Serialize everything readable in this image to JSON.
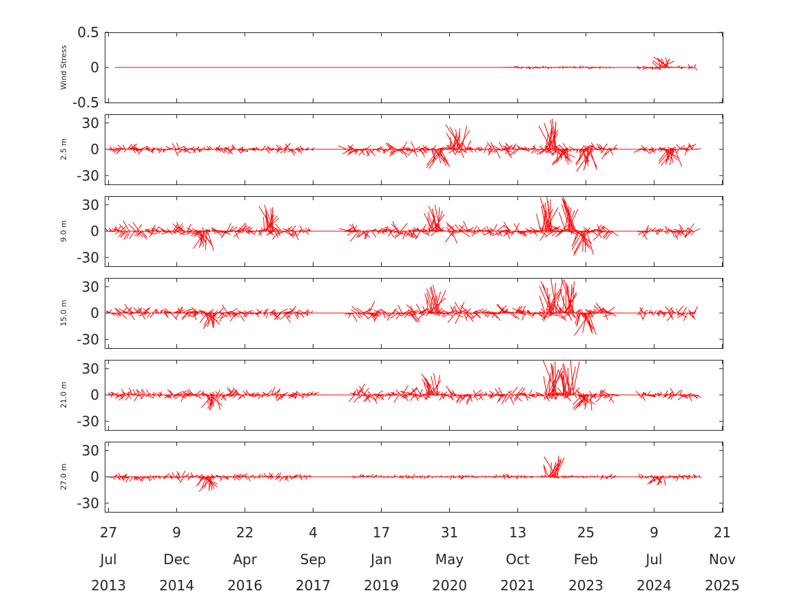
{
  "chart_data": {
    "type": "line",
    "subtype": "stick-vector-timeseries",
    "color": "#ff0000",
    "x_ticks": [
      {
        "day": "27",
        "month": "Jul",
        "year": "2013",
        "date": "2013-07-27"
      },
      {
        "day": "9",
        "month": "Dec",
        "year": "2014",
        "date": "2014-12-09"
      },
      {
        "day": "22",
        "month": "Apr",
        "year": "2016",
        "date": "2016-04-22"
      },
      {
        "day": "4",
        "month": "Sep",
        "year": "2017",
        "date": "2017-09-04"
      },
      {
        "day": "17",
        "month": "Jan",
        "year": "2019",
        "date": "2019-01-17"
      },
      {
        "day": "31",
        "month": "May",
        "year": "2020",
        "date": "2020-05-31"
      },
      {
        "day": "13",
        "month": "Oct",
        "year": "2021",
        "date": "2021-10-13"
      },
      {
        "day": "25",
        "month": "Feb",
        "year": "2023",
        "date": "2023-02-25"
      },
      {
        "day": "9",
        "month": "Jul",
        "year": "2024",
        "date": "2024-07-09"
      },
      {
        "day": "21",
        "month": "Nov",
        "year": "2025",
        "date": "2025-11-21"
      }
    ],
    "xlim": [
      "2013-06-29",
      "2025-11-29"
    ],
    "panels": [
      {
        "ylabel": "Wind Stress",
        "ylim": [
          -0.5,
          0.5
        ],
        "yticks": [
          0.5,
          0,
          -0.5
        ],
        "ytick_labels": [
          "0.5",
          "0",
          "-0.5"
        ],
        "zero_line": [
          "2013-09-12",
          "2025-05-08"
        ],
        "segments": [
          {
            "start": "2021-07-08",
            "end": "2023-09-20",
            "amp": 0.05
          },
          {
            "start": "2024-03-20",
            "end": "2025-05-08",
            "amp": 0.07
          }
        ],
        "peaks": [
          {
            "date": "2024-09-20",
            "value": 0.15
          }
        ]
      },
      {
        "ylabel": "2.5 m",
        "ylim": [
          -40,
          40
        ],
        "yticks": [
          30,
          0,
          -30
        ],
        "ytick_labels": [
          "30",
          "0",
          "-30"
        ],
        "zero_line": [
          "2013-07-20",
          "2025-05-08"
        ],
        "segments": [
          {
            "start": "2013-07-20",
            "end": "2017-08-25",
            "amp": 12
          },
          {
            "start": "2018-05-08",
            "end": "2023-09-18",
            "amp": 15
          },
          {
            "start": "2024-03-20",
            "end": "2025-05-08",
            "amp": 13
          }
        ],
        "peaks": [
          {
            "date": "2020-03-05",
            "value": -22
          },
          {
            "date": "2020-07-27",
            "value": 28
          },
          {
            "date": "2022-06-15",
            "value": 35
          },
          {
            "date": "2022-09-10",
            "value": -18
          },
          {
            "date": "2023-03-05",
            "value": -25
          },
          {
            "date": "2024-11-02",
            "value": -20
          }
        ]
      },
      {
        "ylabel": "9.0 m",
        "ylim": [
          -40,
          40
        ],
        "yticks": [
          30,
          0,
          -30
        ],
        "ytick_labels": [
          "30",
          "0",
          "-30"
        ],
        "zero_line": [
          "2013-07-20",
          "2025-05-08"
        ],
        "segments": [
          {
            "start": "2013-07-25",
            "end": "2017-08-25",
            "amp": 16
          },
          {
            "start": "2018-05-08",
            "end": "2023-09-18",
            "amp": 18
          },
          {
            "start": "2024-03-20",
            "end": "2025-05-08",
            "amp": 14
          }
        ],
        "peaks": [
          {
            "date": "2015-06-15",
            "value": -22
          },
          {
            "date": "2016-10-20",
            "value": 30
          },
          {
            "date": "2020-02-15",
            "value": 30
          },
          {
            "date": "2022-05-15",
            "value": 40
          },
          {
            "date": "2022-11-05",
            "value": 40
          },
          {
            "date": "2023-02-01",
            "value": -28
          }
        ]
      },
      {
        "ylabel": "15.0 m",
        "ylim": [
          -40,
          40
        ],
        "yticks": [
          30,
          0,
          -30
        ],
        "ytick_labels": [
          "30",
          "0",
          "-30"
        ],
        "zero_line": [
          "2013-07-20",
          "2025-05-08"
        ],
        "segments": [
          {
            "start": "2013-07-25",
            "end": "2017-08-25",
            "amp": 15
          },
          {
            "start": "2018-06-10",
            "end": "2023-09-18",
            "amp": 18
          },
          {
            "start": "2024-03-20",
            "end": "2025-05-08",
            "amp": 14
          }
        ],
        "peaks": [
          {
            "date": "2015-08-10",
            "value": -18
          },
          {
            "date": "2020-02-10",
            "value": 32
          },
          {
            "date": "2022-06-15",
            "value": 40
          },
          {
            "date": "2022-10-25",
            "value": 40
          },
          {
            "date": "2023-02-15",
            "value": -26
          }
        ]
      },
      {
        "ylabel": "21.0 m",
        "ylim": [
          -40,
          40
        ],
        "yticks": [
          30,
          0,
          -30
        ],
        "ytick_labels": [
          "30",
          "0",
          "-30"
        ],
        "zero_line": [
          "2013-07-20",
          "2025-05-08"
        ],
        "segments": [
          {
            "start": "2013-07-25",
            "end": "2017-09-20",
            "amp": 13
          },
          {
            "start": "2018-06-20",
            "end": "2023-09-18",
            "amp": 16
          },
          {
            "start": "2024-03-20",
            "end": "2025-05-08",
            "amp": 12
          }
        ],
        "peaks": [
          {
            "date": "2015-08-25",
            "value": -18
          },
          {
            "date": "2020-02-01",
            "value": 25
          },
          {
            "date": "2022-06-20",
            "value": 40
          },
          {
            "date": "2022-10-20",
            "value": 40
          },
          {
            "date": "2023-02-20",
            "value": -18
          }
        ]
      },
      {
        "ylabel": "27.0 m",
        "ylim": [
          -40,
          40
        ],
        "yticks": [
          30,
          0,
          -30
        ],
        "ytick_labels": [
          "30",
          "0",
          "-30"
        ],
        "zero_line": [
          "2013-07-20",
          "2025-06-10"
        ],
        "segments": [
          {
            "start": "2013-07-25",
            "end": "2017-08-25",
            "amp": 9
          },
          {
            "start": "2018-06-20",
            "end": "2023-09-18",
            "amp": 5
          },
          {
            "start": "2024-03-20",
            "end": "2025-06-10",
            "amp": 6
          }
        ],
        "peaks": [
          {
            "date": "2015-07-20",
            "value": -17
          },
          {
            "date": "2022-06-25",
            "value": 24
          },
          {
            "date": "2024-08-10",
            "value": -10
          }
        ]
      }
    ]
  }
}
